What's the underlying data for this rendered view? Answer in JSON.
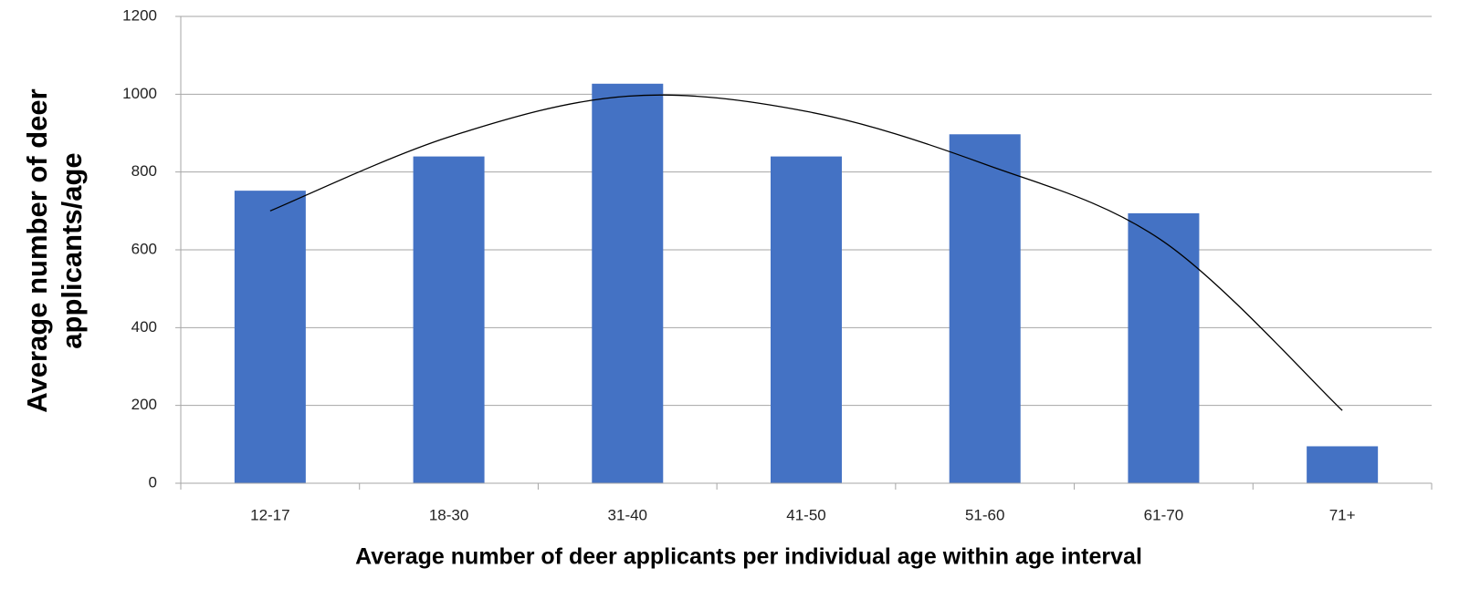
{
  "chart_data": {
    "type": "bar",
    "x_label": "Average number of deer applicants per individual age within age interval",
    "y_label": "Average number of deer applicants/age",
    "categories": [
      "12-17",
      "18-30",
      "31-40",
      "41-50",
      "51-60",
      "61-70",
      "71+"
    ],
    "values": [
      752,
      840,
      1027,
      840,
      897,
      694,
      95
    ],
    "color": "#4472c4",
    "trendline": {
      "values": [
        700,
        890,
        995,
        956,
        820,
        621,
        187
      ],
      "color": "#000000"
    },
    "ylim": [
      0,
      1200
    ],
    "yticks": [
      0,
      200,
      400,
      600,
      800,
      1000,
      1200
    ],
    "grid": true
  }
}
